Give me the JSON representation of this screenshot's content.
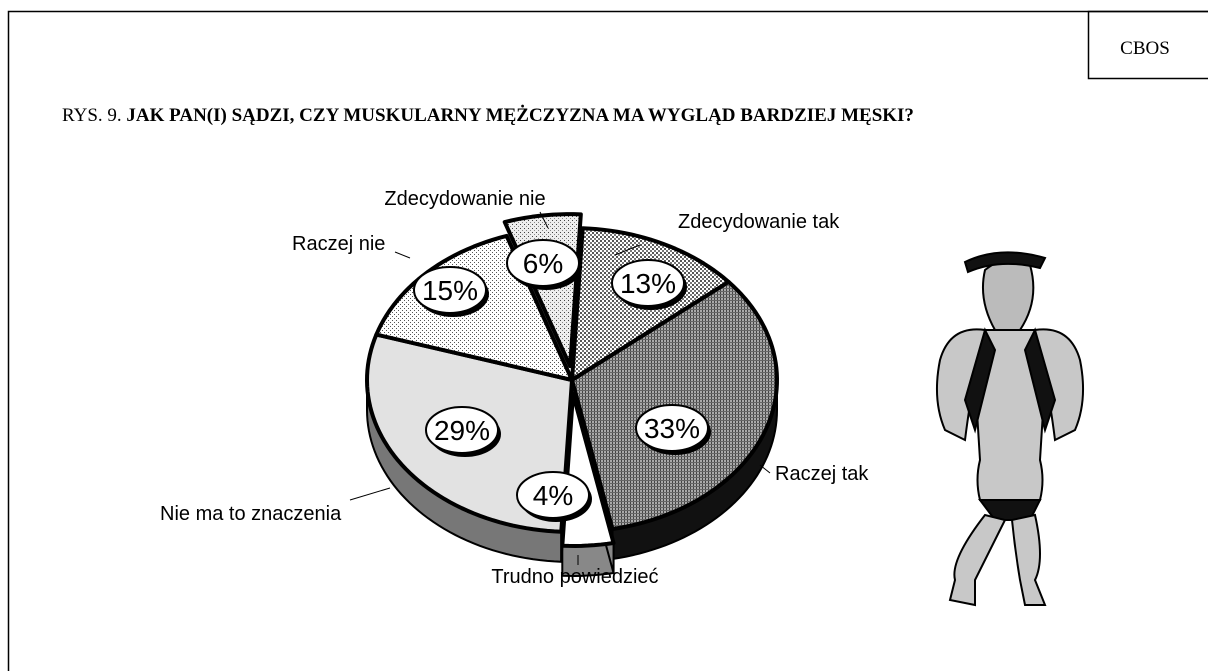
{
  "chart_data": {
    "type": "pie",
    "source": "CBOS",
    "figure_label": "RYS. 9.",
    "title": "JAK PAN(I) SĄDZI, CZY MUSKULARNY MĘŻCZYZNA MA WYGLĄD BARDZIEJ MĘSKI?",
    "categories": [
      "Zdecydowanie tak",
      "Raczej tak",
      "Trudno powiedzieć",
      "Nie ma to znaczenia",
      "Raczej nie",
      "Zdecydowanie nie"
    ],
    "values": [
      13,
      33,
      4,
      29,
      15,
      6
    ],
    "value_labels": [
      "13%",
      "33%",
      "4%",
      "29%",
      "15%",
      "6%"
    ],
    "colors": [
      "#c8c8c8",
      "#9a9a9a",
      "#ffffff",
      "#e2e2e2",
      "#dcdcdc",
      "#cfcfcf"
    ]
  }
}
